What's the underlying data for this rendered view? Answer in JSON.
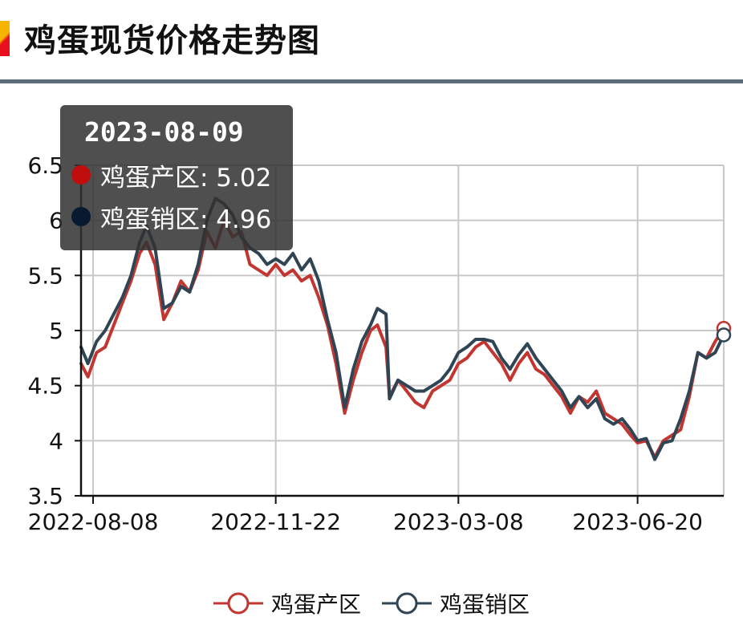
{
  "header": {
    "title": "鸡蛋现货价格走势图"
  },
  "colors": {
    "series1": "#c23531",
    "series2": "#2f4554",
    "grid": "#c8c8c8",
    "axis": "#111111"
  },
  "chart_data": {
    "type": "line",
    "title": "鸡蛋现货价格走势图",
    "xlabel": "",
    "ylabel": "",
    "x_start": "2022-08-01",
    "x_end": "2023-08-09",
    "ylim": [
      3.5,
      6.5
    ],
    "yticks": [
      3.5,
      4,
      4.5,
      5,
      5.5,
      6,
      6.5
    ],
    "yticks_labels": [
      "3.5",
      "4",
      "4.5",
      "5",
      "5.5",
      "6",
      "6.5"
    ],
    "xticks": [
      "2022-08-08",
      "2022-11-22",
      "2023-03-08",
      "2023-06-20"
    ],
    "grid": true,
    "legend_position": "bottom",
    "series": [
      {
        "name": "鸡蛋产区",
        "points": [
          [
            "2022-08-01",
            4.7
          ],
          [
            "2022-08-05",
            4.58
          ],
          [
            "2022-08-10",
            4.8
          ],
          [
            "2022-08-15",
            4.85
          ],
          [
            "2022-08-20",
            5.05
          ],
          [
            "2022-08-25",
            5.25
          ],
          [
            "2022-08-30",
            5.45
          ],
          [
            "2022-09-04",
            5.7
          ],
          [
            "2022-09-08",
            5.8
          ],
          [
            "2022-09-13",
            5.6
          ],
          [
            "2022-09-18",
            5.1
          ],
          [
            "2022-09-23",
            5.25
          ],
          [
            "2022-09-28",
            5.45
          ],
          [
            "2022-10-03",
            5.35
          ],
          [
            "2022-10-08",
            5.55
          ],
          [
            "2022-10-13",
            5.9
          ],
          [
            "2022-10-18",
            5.75
          ],
          [
            "2022-10-23",
            6.0
          ],
          [
            "2022-10-28",
            5.85
          ],
          [
            "2022-11-02",
            5.9
          ],
          [
            "2022-11-07",
            5.6
          ],
          [
            "2022-11-12",
            5.55
          ],
          [
            "2022-11-17",
            5.5
          ],
          [
            "2022-11-22",
            5.6
          ],
          [
            "2022-11-27",
            5.5
          ],
          [
            "2022-12-02",
            5.55
          ],
          [
            "2022-12-07",
            5.45
          ],
          [
            "2022-12-12",
            5.5
          ],
          [
            "2022-12-17",
            5.3
          ],
          [
            "2022-12-22",
            5.05
          ],
          [
            "2022-12-27",
            4.7
          ],
          [
            "2023-01-01",
            4.25
          ],
          [
            "2023-01-06",
            4.55
          ],
          [
            "2023-01-11",
            4.8
          ],
          [
            "2023-01-16",
            5.0
          ],
          [
            "2023-01-20",
            5.05
          ],
          [
            "2023-01-25",
            4.85
          ],
          [
            "2023-01-27",
            4.4
          ],
          [
            "2023-02-01",
            4.55
          ],
          [
            "2023-02-06",
            4.45
          ],
          [
            "2023-02-11",
            4.35
          ],
          [
            "2023-02-16",
            4.3
          ],
          [
            "2023-02-21",
            4.45
          ],
          [
            "2023-02-26",
            4.5
          ],
          [
            "2023-03-03",
            4.55
          ],
          [
            "2023-03-08",
            4.7
          ],
          [
            "2023-03-13",
            4.75
          ],
          [
            "2023-03-18",
            4.85
          ],
          [
            "2023-03-23",
            4.9
          ],
          [
            "2023-03-28",
            4.8
          ],
          [
            "2023-04-02",
            4.7
          ],
          [
            "2023-04-07",
            4.55
          ],
          [
            "2023-04-12",
            4.7
          ],
          [
            "2023-04-17",
            4.8
          ],
          [
            "2023-04-22",
            4.65
          ],
          [
            "2023-04-27",
            4.6
          ],
          [
            "2023-05-02",
            4.5
          ],
          [
            "2023-05-07",
            4.4
          ],
          [
            "2023-05-12",
            4.25
          ],
          [
            "2023-05-17",
            4.4
          ],
          [
            "2023-05-22",
            4.35
          ],
          [
            "2023-05-27",
            4.45
          ],
          [
            "2023-06-01",
            4.25
          ],
          [
            "2023-06-06",
            4.2
          ],
          [
            "2023-06-11",
            4.15
          ],
          [
            "2023-06-16",
            4.05
          ],
          [
            "2023-06-20",
            3.98
          ],
          [
            "2023-06-25",
            4.0
          ],
          [
            "2023-06-30",
            3.85
          ],
          [
            "2023-07-05",
            4.0
          ],
          [
            "2023-07-10",
            4.05
          ],
          [
            "2023-07-15",
            4.1
          ],
          [
            "2023-07-20",
            4.4
          ],
          [
            "2023-07-25",
            4.8
          ],
          [
            "2023-07-30",
            4.75
          ],
          [
            "2023-08-04",
            4.9
          ],
          [
            "2023-08-09",
            5.02
          ]
        ]
      },
      {
        "name": "鸡蛋销区",
        "points": [
          [
            "2022-08-01",
            4.85
          ],
          [
            "2022-08-05",
            4.7
          ],
          [
            "2022-08-10",
            4.9
          ],
          [
            "2022-08-15",
            5.0
          ],
          [
            "2022-08-20",
            5.15
          ],
          [
            "2022-08-25",
            5.3
          ],
          [
            "2022-08-30",
            5.5
          ],
          [
            "2022-09-04",
            5.8
          ],
          [
            "2022-09-08",
            5.95
          ],
          [
            "2022-09-13",
            5.75
          ],
          [
            "2022-09-18",
            5.2
          ],
          [
            "2022-09-23",
            5.25
          ],
          [
            "2022-09-28",
            5.4
          ],
          [
            "2022-10-03",
            5.35
          ],
          [
            "2022-10-08",
            5.6
          ],
          [
            "2022-10-13",
            6.0
          ],
          [
            "2022-10-18",
            6.2
          ],
          [
            "2022-10-23",
            6.15
          ],
          [
            "2022-10-28",
            6.05
          ],
          [
            "2022-11-02",
            5.85
          ],
          [
            "2022-11-07",
            5.75
          ],
          [
            "2022-11-12",
            5.7
          ],
          [
            "2022-11-17",
            5.6
          ],
          [
            "2022-11-22",
            5.65
          ],
          [
            "2022-11-27",
            5.6
          ],
          [
            "2022-12-02",
            5.7
          ],
          [
            "2022-12-07",
            5.55
          ],
          [
            "2022-12-12",
            5.65
          ],
          [
            "2022-12-17",
            5.45
          ],
          [
            "2022-12-22",
            5.1
          ],
          [
            "2022-12-27",
            4.8
          ],
          [
            "2023-01-01",
            4.3
          ],
          [
            "2023-01-06",
            4.65
          ],
          [
            "2023-01-11",
            4.9
          ],
          [
            "2023-01-16",
            5.05
          ],
          [
            "2023-01-20",
            5.2
          ],
          [
            "2023-01-25",
            5.15
          ],
          [
            "2023-01-27",
            4.38
          ],
          [
            "2023-02-01",
            4.55
          ],
          [
            "2023-02-06",
            4.5
          ],
          [
            "2023-02-11",
            4.45
          ],
          [
            "2023-02-16",
            4.45
          ],
          [
            "2023-02-21",
            4.5
          ],
          [
            "2023-02-26",
            4.55
          ],
          [
            "2023-03-03",
            4.65
          ],
          [
            "2023-03-08",
            4.8
          ],
          [
            "2023-03-13",
            4.85
          ],
          [
            "2023-03-18",
            4.92
          ],
          [
            "2023-03-23",
            4.92
          ],
          [
            "2023-03-28",
            4.9
          ],
          [
            "2023-04-02",
            4.75
          ],
          [
            "2023-04-07",
            4.65
          ],
          [
            "2023-04-12",
            4.78
          ],
          [
            "2023-04-17",
            4.88
          ],
          [
            "2023-04-22",
            4.75
          ],
          [
            "2023-04-27",
            4.65
          ],
          [
            "2023-05-02",
            4.55
          ],
          [
            "2023-05-07",
            4.45
          ],
          [
            "2023-05-12",
            4.3
          ],
          [
            "2023-05-17",
            4.4
          ],
          [
            "2023-05-22",
            4.3
          ],
          [
            "2023-05-27",
            4.38
          ],
          [
            "2023-06-01",
            4.2
          ],
          [
            "2023-06-06",
            4.15
          ],
          [
            "2023-06-11",
            4.2
          ],
          [
            "2023-06-16",
            4.1
          ],
          [
            "2023-06-20",
            4.0
          ],
          [
            "2023-06-25",
            4.02
          ],
          [
            "2023-06-30",
            3.83
          ],
          [
            "2023-07-05",
            3.98
          ],
          [
            "2023-07-10",
            4.0
          ],
          [
            "2023-07-15",
            4.2
          ],
          [
            "2023-07-20",
            4.45
          ],
          [
            "2023-07-25",
            4.8
          ],
          [
            "2023-07-30",
            4.75
          ],
          [
            "2023-08-04",
            4.8
          ],
          [
            "2023-08-09",
            4.96
          ]
        ]
      }
    ],
    "tooltip": {
      "date": "2023-08-09",
      "rows": [
        {
          "label": "鸡蛋产区: 5.02"
        },
        {
          "label": "鸡蛋销区: 4.96"
        }
      ]
    }
  }
}
